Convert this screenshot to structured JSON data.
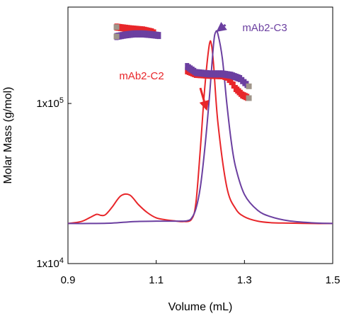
{
  "chart_data": {
    "type": "line",
    "title": "",
    "xlabel": "Volume (mL)",
    "ylabel": "Molar Mass (g/mol)",
    "xlim": [
      0.9,
      1.5
    ],
    "ylim": [
      10000,
      400000
    ],
    "y_scale": "log",
    "grid": false,
    "x_ticks": [
      {
        "value": 0.9,
        "label": "0.9"
      },
      {
        "value": 1.1,
        "label": "1.1"
      },
      {
        "value": 1.3,
        "label": "1.3"
      },
      {
        "value": 1.5,
        "label": "1.5"
      }
    ],
    "y_ticks": [
      {
        "value": 10000,
        "base": "1x10",
        "exp": "4"
      },
      {
        "value": 100000,
        "base": "1x10",
        "exp": "5"
      }
    ],
    "series": [
      {
        "name": "mAb2-C2",
        "color": "#e8262a",
        "kind": "detector-signal",
        "x": [
          0.9,
          0.93,
          0.95,
          0.965,
          0.975,
          0.985,
          1.0,
          1.02,
          1.04,
          1.06,
          1.08,
          1.1,
          1.12,
          1.14,
          1.16,
          1.18,
          1.19,
          1.2,
          1.21,
          1.22,
          1.225,
          1.23,
          1.24,
          1.26,
          1.28,
          1.3,
          1.33,
          1.36,
          1.4,
          1.45,
          1.5
        ],
        "y": [
          17800,
          18300,
          19400,
          20300,
          20000,
          20200,
          22500,
          26500,
          26800,
          23300,
          20800,
          19300,
          18800,
          18500,
          18300,
          18900,
          24000,
          52000,
          125000,
          230000,
          235000,
          175000,
          75000,
          30000,
          22000,
          19600,
          18400,
          18000,
          17900,
          17800,
          17800
        ]
      },
      {
        "name": "mAb2-C3",
        "color": "#6b3fa0",
        "kind": "detector-signal",
        "x": [
          0.9,
          0.95,
          1.0,
          1.05,
          1.1,
          1.15,
          1.17,
          1.18,
          1.19,
          1.2,
          1.21,
          1.22,
          1.23,
          1.235,
          1.24,
          1.25,
          1.26,
          1.27,
          1.28,
          1.3,
          1.33,
          1.36,
          1.4,
          1.45,
          1.5
        ],
        "y": [
          17800,
          17800,
          17900,
          18300,
          18400,
          18400,
          18500,
          19200,
          22000,
          30000,
          52000,
          105000,
          235000,
          280000,
          270000,
          190000,
          100000,
          58000,
          40000,
          27000,
          21500,
          19600,
          18500,
          18000,
          17800
        ]
      },
      {
        "name": "mAb2-C2",
        "color": "#e8262a",
        "kind": "molar-mass",
        "x": [
          1.01,
          1.04,
          1.07,
          1.09,
          1.1,
          1.17,
          1.19,
          1.22,
          1.25,
          1.26,
          1.27,
          1.28,
          1.295,
          1.31
        ],
        "y": [
          300000,
          293000,
          288000,
          280000,
          272000,
          160000,
          152000,
          150000,
          149000,
          146000,
          137000,
          124000,
          113000,
          108000
        ]
      },
      {
        "name": "mAb2-C3",
        "color": "#6b3fa0",
        "kind": "molar-mass",
        "x": [
          1.01,
          1.03,
          1.05,
          1.07,
          1.09,
          1.11,
          1.17,
          1.19,
          1.22,
          1.25,
          1.27,
          1.29,
          1.3,
          1.31
        ],
        "y": [
          262000,
          268000,
          272000,
          272000,
          269000,
          265000,
          170000,
          156000,
          153000,
          153000,
          150000,
          143000,
          135000,
          128000
        ]
      }
    ],
    "annotations": [
      {
        "text": "mAb2-C2",
        "color": "#e8262a",
        "arrow_from": [
          1.2,
          125000
        ],
        "arrow_to": [
          1.215,
          90000
        ]
      },
      {
        "text": "mAb2-C3",
        "color": "#6b3fa0",
        "arrow_from": [
          1.257,
          310000
        ],
        "arrow_to": [
          1.236,
          280000
        ]
      }
    ]
  }
}
